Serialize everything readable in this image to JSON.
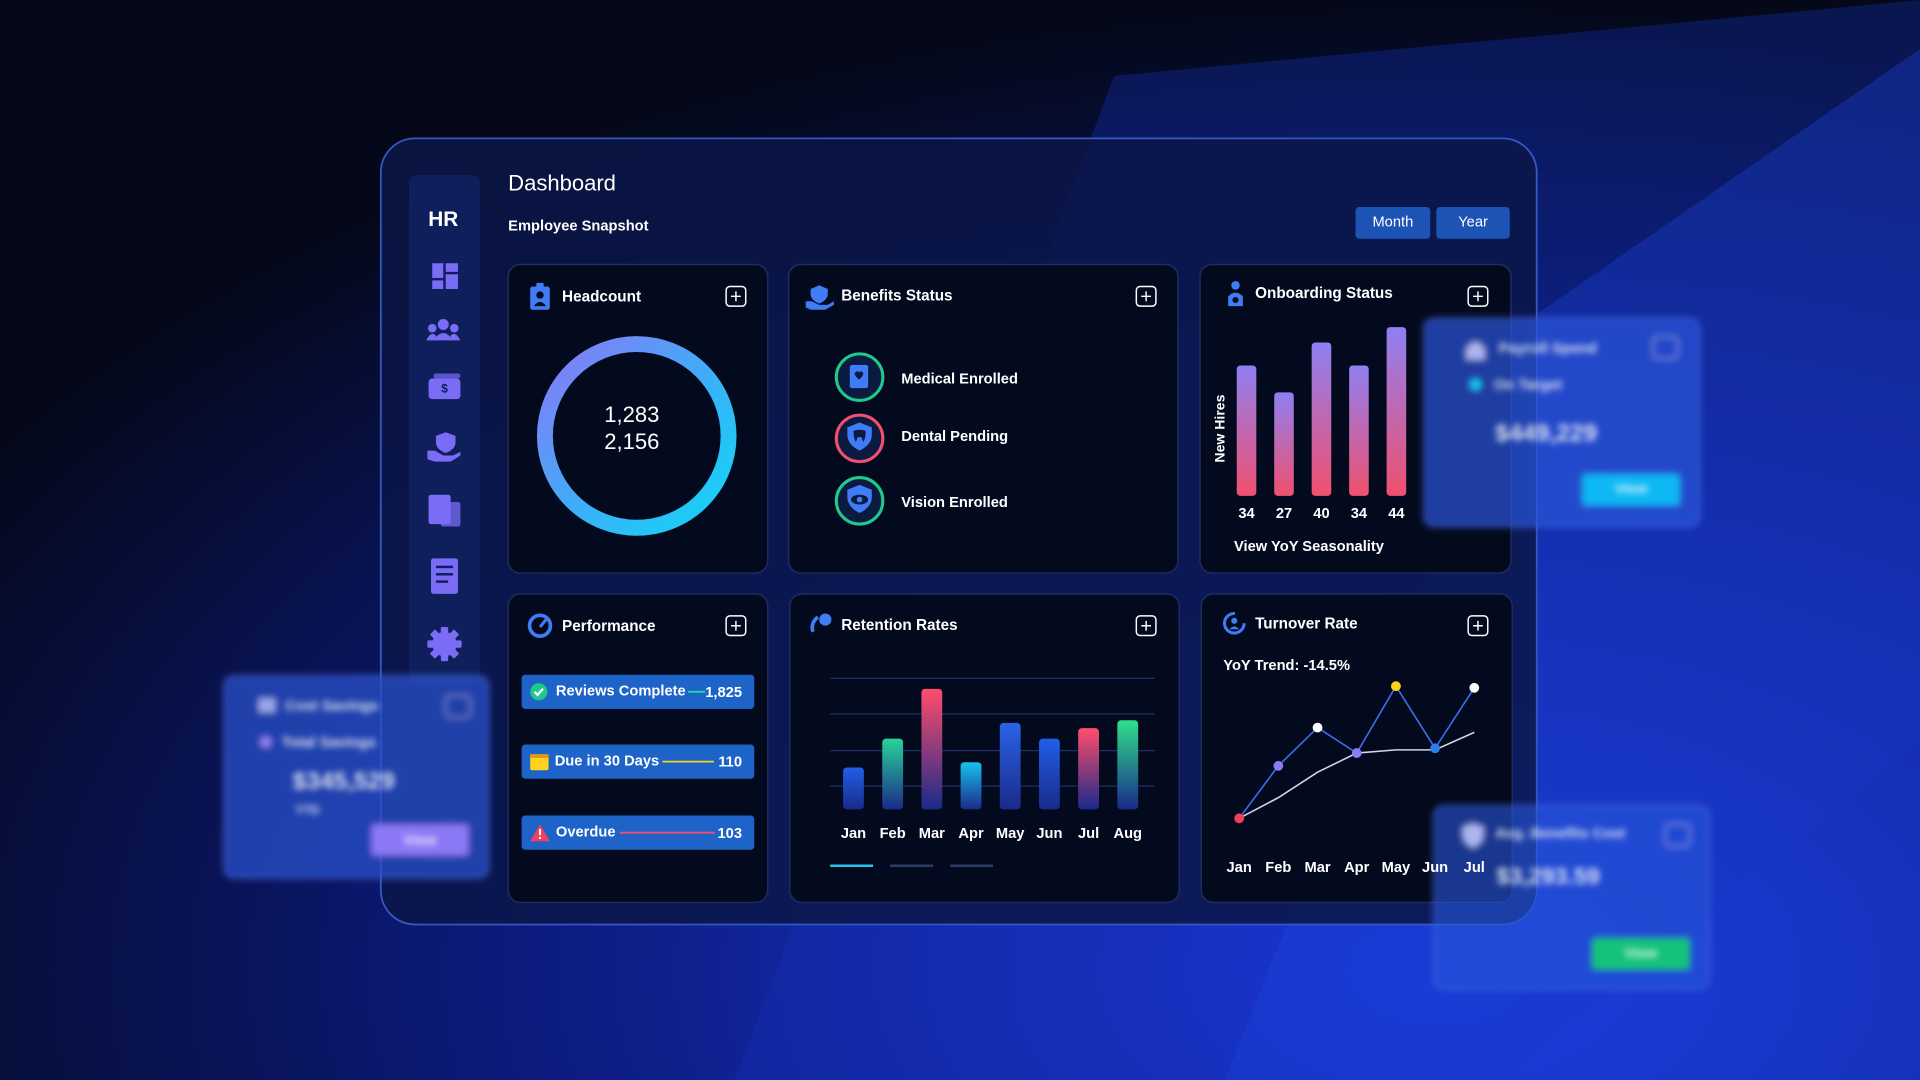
{
  "sidebar": {
    "brand": "HR"
  },
  "header": {
    "title": "Dashboard",
    "subtitle": "Employee Snapshot",
    "buttons": [
      "Month",
      "Year"
    ]
  },
  "headcount": {
    "title": "Headcount",
    "values": [
      "1,283",
      "2,156"
    ]
  },
  "benefits": {
    "title": "Benefits Status",
    "items": [
      "Medical Enrolled",
      "Dental Pending",
      "Vision Enrolled"
    ]
  },
  "performance": {
    "title": "Performance",
    "items": [
      {
        "label": "Reviews Complete",
        "value": "1,825"
      },
      {
        "label": "Due in 30 Days",
        "value": "110"
      },
      {
        "label": "Overdue",
        "value": "103"
      }
    ]
  },
  "side_cards": [
    {
      "title": "Cost Savings",
      "legend": "Total Savings",
      "amount": "$345,529",
      "note": "YTD",
      "button": "View"
    },
    {
      "title": "Payroll Spend",
      "legend": "On Target",
      "amount": "$449,229",
      "button": "View"
    },
    {
      "title": "Avg. Benefits Cost",
      "amount": "$3,293.59",
      "button": "View"
    }
  ],
  "chart_data": [
    {
      "type": "bar",
      "title": "Onboarding Status",
      "ylabel": "New Hires",
      "values": [
        34,
        27,
        40,
        34,
        44
      ],
      "ylim": [
        0,
        45
      ],
      "color": "#f0506e",
      "color_top": "#8f80f2",
      "annotation": "View YoY Seasonality"
    },
    {
      "type": "bar",
      "title": "Retention Rates",
      "categories": [
        "Jan",
        "Feb",
        "Mar",
        "Apr",
        "May",
        "Jun",
        "Jul",
        "Aug"
      ],
      "values": [
        32,
        54,
        92,
        36,
        66,
        54,
        62,
        68
      ],
      "ylim": [
        0,
        100
      ],
      "colors": [
        "#1f5fe8",
        "#27d39a",
        "#ff4d6d",
        "#18c2ee",
        "#2a63e8",
        "#1f5fe8",
        "#ff4d6d",
        "#2ee08a"
      ]
    },
    {
      "type": "line",
      "title": "Turnover Rate",
      "annotation": "YoY Trend: -14.5%",
      "categories": [
        "Jan",
        "Feb",
        "Mar",
        "Apr",
        "May",
        "Jun",
        "Jul"
      ],
      "ylim": [
        0,
        100
      ],
      "series": [
        {
          "values": [
            9,
            42,
            66,
            50,
            92,
            53,
            91
          ],
          "color": "#3d6df0",
          "point_colors": [
            "#f0405e",
            "#8b7cf6",
            "#ffffff",
            "#8b7cf6",
            "#ffd21f",
            "#2a7ee8",
            "#ffffff"
          ]
        },
        {
          "values": [
            9,
            22,
            38,
            50,
            52,
            52,
            63
          ],
          "color": "#cfd6e6"
        }
      ]
    }
  ]
}
